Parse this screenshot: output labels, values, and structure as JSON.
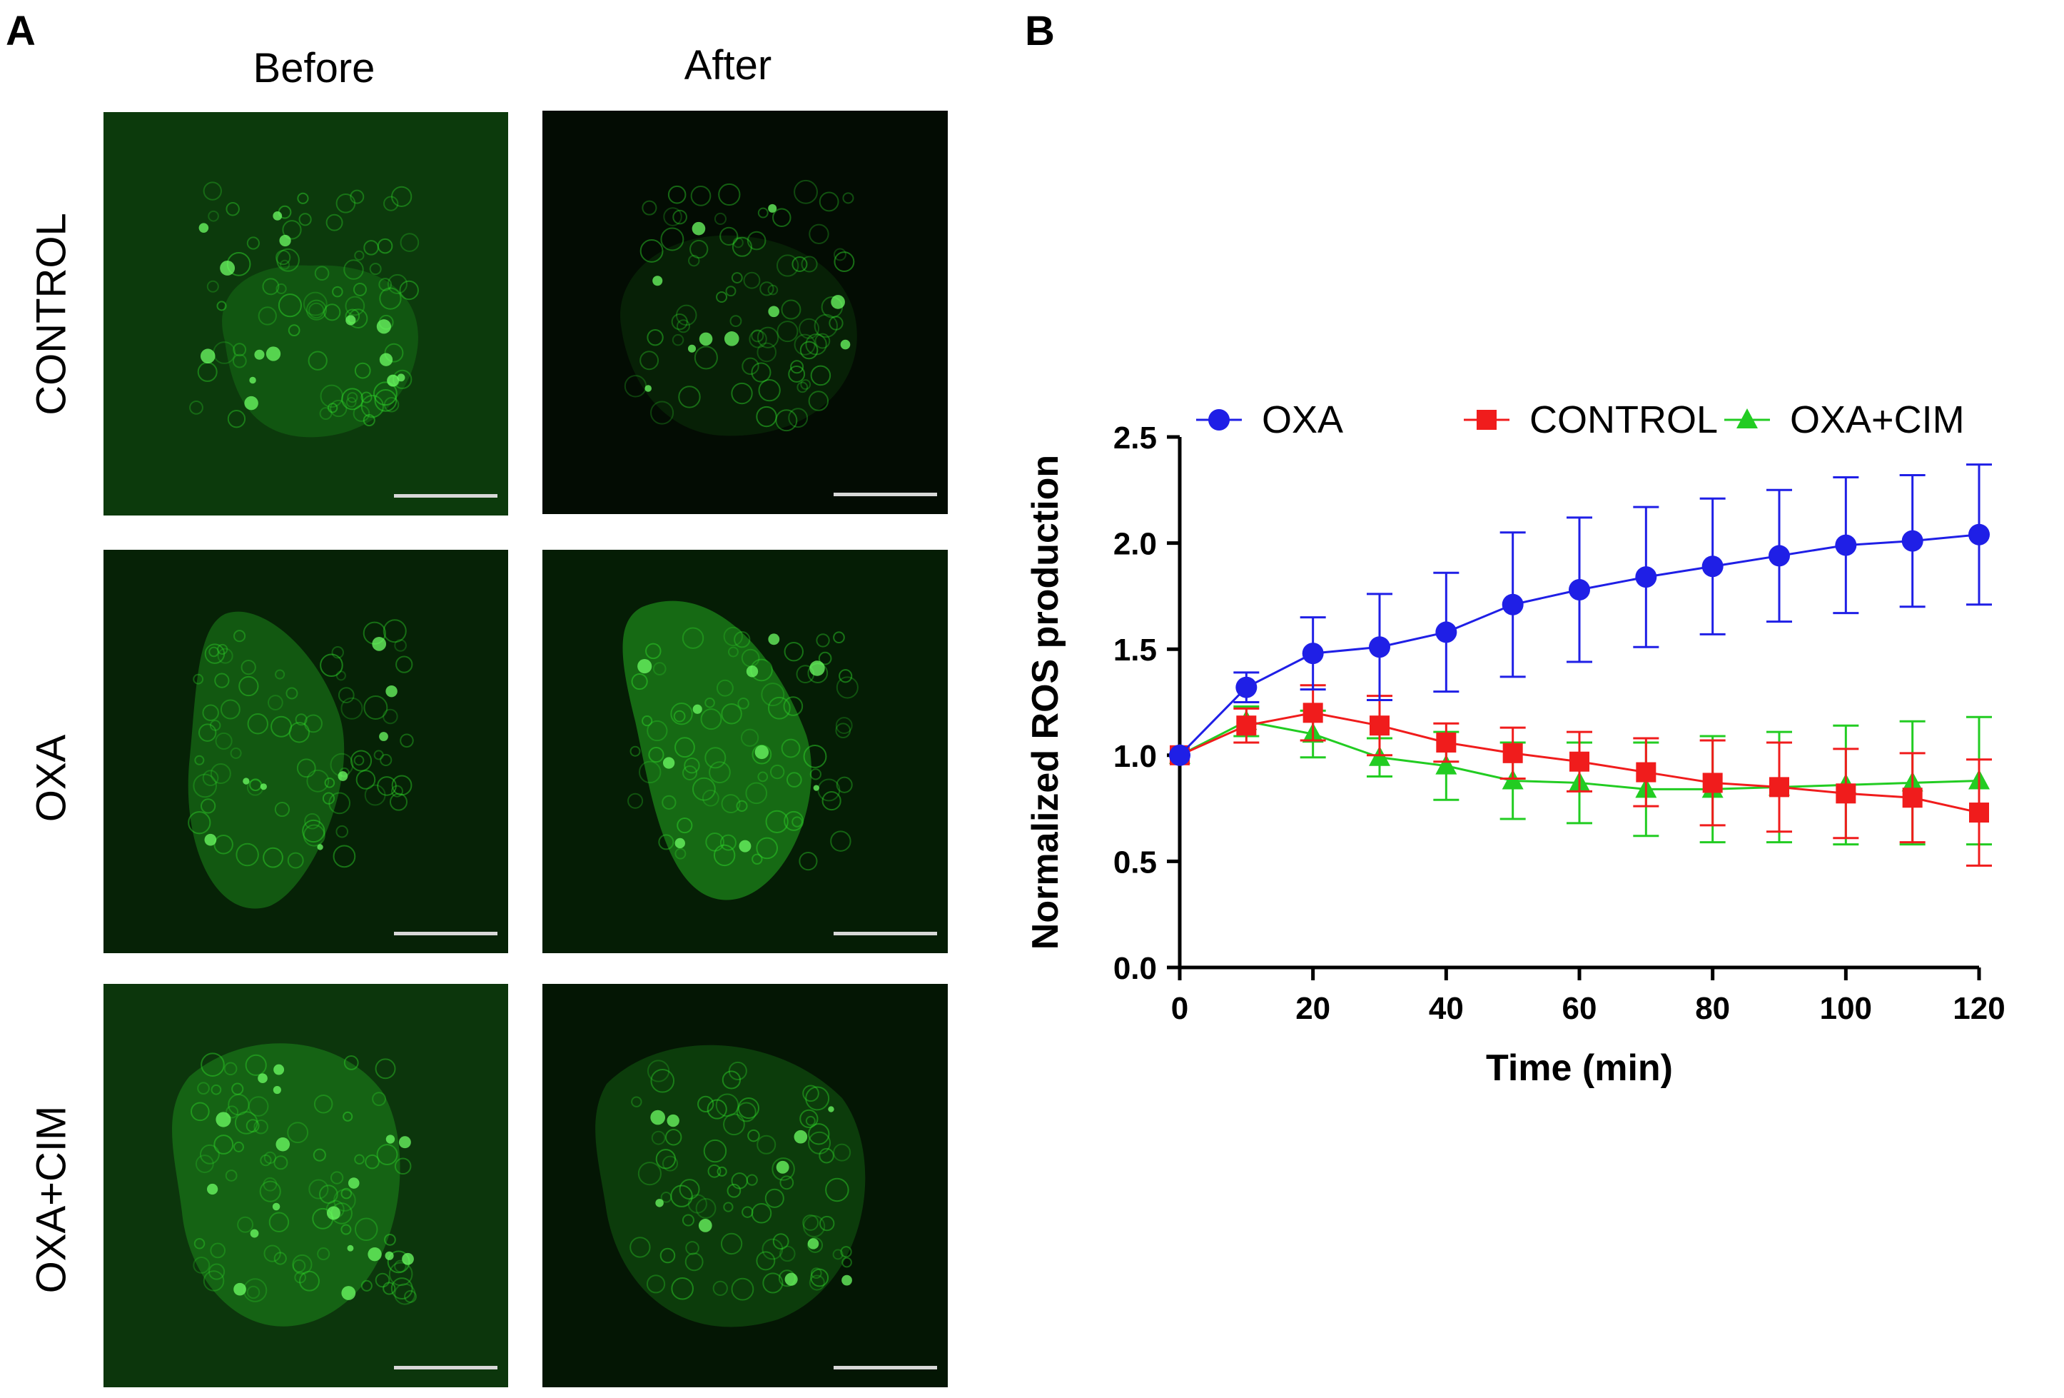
{
  "panels": {
    "a_letter": "A",
    "b_letter": "B"
  },
  "micrographs": {
    "columns": [
      "Before",
      "After"
    ],
    "rows": [
      "CONTROL",
      "OXA",
      "OXA+CIM"
    ],
    "fluorescence_color": "#2fd62a",
    "scale_bar_color": "#d8d8d8"
  },
  "chart_data": {
    "type": "line",
    "title": "",
    "xlabel": "Time (min)",
    "ylabel": "Normalized ROS production",
    "xlim": [
      0,
      120
    ],
    "ylim": [
      0,
      2.5
    ],
    "xticks": [
      "0",
      "20",
      "40",
      "60",
      "80",
      "100",
      "120"
    ],
    "yticks": [
      "0.0",
      "0.5",
      "1.0",
      "1.5",
      "2.0",
      "2.5"
    ],
    "x": [
      0,
      10,
      20,
      30,
      40,
      50,
      60,
      70,
      80,
      90,
      100,
      110,
      120
    ],
    "legend_position": "top",
    "series": [
      {
        "name": "OXA",
        "color": "#1f1fe6",
        "marker": "circle",
        "values": [
          1.0,
          1.32,
          1.48,
          1.51,
          1.58,
          1.71,
          1.78,
          1.84,
          1.89,
          1.94,
          1.99,
          2.01,
          2.04
        ],
        "error": [
          0,
          0.07,
          0.17,
          0.25,
          0.28,
          0.34,
          0.34,
          0.33,
          0.32,
          0.31,
          0.32,
          0.31,
          0.33
        ]
      },
      {
        "name": "CONTROL",
        "color": "#f01c1c",
        "marker": "square",
        "values": [
          1.0,
          1.14,
          1.2,
          1.14,
          1.06,
          1.01,
          0.97,
          0.92,
          0.87,
          0.85,
          0.82,
          0.8,
          0.73
        ],
        "error": [
          0,
          0.08,
          0.13,
          0.14,
          0.09,
          0.12,
          0.14,
          0.16,
          0.2,
          0.21,
          0.21,
          0.21,
          0.25
        ]
      },
      {
        "name": "OXA+CIM",
        "color": "#22cc22",
        "marker": "triangle",
        "values": [
          1.0,
          1.16,
          1.1,
          0.99,
          0.95,
          0.88,
          0.87,
          0.84,
          0.84,
          0.85,
          0.86,
          0.87,
          0.88
        ],
        "error": [
          0,
          0.07,
          0.11,
          0.09,
          0.16,
          0.18,
          0.19,
          0.22,
          0.25,
          0.26,
          0.28,
          0.29,
          0.3
        ]
      }
    ]
  }
}
